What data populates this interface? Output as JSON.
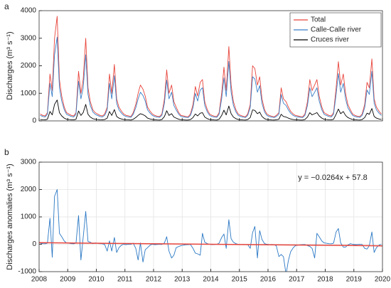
{
  "chart_data": [
    {
      "type": "line",
      "panel": "a",
      "ylabel": "Discharges (m³ s⁻¹)",
      "xlim": [
        2008,
        2020
      ],
      "xticks": [
        2008,
        2009,
        2010,
        2011,
        2012,
        2013,
        2014,
        2015,
        2016,
        2017,
        2018,
        2019,
        2020
      ],
      "ylim": [
        0,
        4000
      ],
      "yticks": [
        0,
        1000,
        2000,
        3000,
        4000
      ],
      "grid": false,
      "legend": "upper right",
      "x": [
        2008.04,
        2008.13,
        2008.21,
        2008.29,
        2008.38,
        2008.46,
        2008.54,
        2008.63,
        2008.71,
        2008.79,
        2008.88,
        2008.96,
        2009.04,
        2009.13,
        2009.21,
        2009.29,
        2009.38,
        2009.46,
        2009.54,
        2009.63,
        2009.71,
        2009.79,
        2009.88,
        2009.96,
        2010.04,
        2010.13,
        2010.21,
        2010.29,
        2010.38,
        2010.46,
        2010.54,
        2010.63,
        2010.71,
        2010.79,
        2010.88,
        2010.96,
        2011.04,
        2011.13,
        2011.21,
        2011.29,
        2011.38,
        2011.46,
        2011.54,
        2011.63,
        2011.71,
        2011.79,
        2011.88,
        2011.96,
        2012.04,
        2012.13,
        2012.21,
        2012.29,
        2012.38,
        2012.46,
        2012.54,
        2012.63,
        2012.71,
        2012.79,
        2012.88,
        2012.96,
        2013.04,
        2013.13,
        2013.21,
        2013.29,
        2013.38,
        2013.46,
        2013.54,
        2013.63,
        2013.71,
        2013.79,
        2013.88,
        2013.96,
        2014.04,
        2014.13,
        2014.21,
        2014.29,
        2014.38,
        2014.46,
        2014.54,
        2014.63,
        2014.71,
        2014.79,
        2014.88,
        2014.96,
        2015.04,
        2015.13,
        2015.21,
        2015.29,
        2015.38,
        2015.46,
        2015.54,
        2015.63,
        2015.71,
        2015.79,
        2015.88,
        2015.96,
        2016.04,
        2016.13,
        2016.21,
        2016.29,
        2016.38,
        2016.46,
        2016.54,
        2016.63,
        2016.71,
        2016.79,
        2016.88,
        2016.96,
        2017.04,
        2017.13,
        2017.21,
        2017.29,
        2017.38,
        2017.46,
        2017.54,
        2017.63,
        2017.71,
        2017.79,
        2017.88,
        2017.96,
        2018.04,
        2018.13,
        2018.21,
        2018.29,
        2018.38,
        2018.46,
        2018.54,
        2018.63,
        2018.71,
        2018.79,
        2018.88,
        2018.96,
        2019.04,
        2019.13,
        2019.21,
        2019.29,
        2019.38,
        2019.46,
        2019.54,
        2019.63,
        2019.71,
        2019.79,
        2019.88,
        2019.96
      ],
      "series": [
        {
          "name": "Total",
          "color": "#e8453c",
          "values": [
            250,
            200,
            180,
            300,
            1700,
            1100,
            3000,
            3800,
            1500,
            900,
            500,
            300,
            250,
            200,
            180,
            300,
            1800,
            1000,
            1500,
            3000,
            1200,
            700,
            400,
            300,
            250,
            200,
            180,
            250,
            500,
            1700,
            1000,
            2050,
            800,
            500,
            350,
            250,
            200,
            180,
            160,
            300,
            600,
            1000,
            1300,
            1150,
            900,
            500,
            350,
            250,
            200,
            170,
            160,
            250,
            800,
            1850,
            1000,
            1300,
            700,
            500,
            300,
            200,
            180,
            160,
            150,
            250,
            600,
            1250,
            900,
            1400,
            1500,
            700,
            400,
            250,
            200,
            170,
            160,
            300,
            1000,
            1950,
            1100,
            2700,
            1300,
            700,
            400,
            250,
            200,
            170,
            150,
            250,
            600,
            2000,
            1900,
            1300,
            1600,
            800,
            400,
            250,
            200,
            170,
            150,
            200,
            300,
            1200,
            800,
            700,
            500,
            350,
            250,
            200,
            180,
            160,
            150,
            250,
            700,
            1500,
            1100,
            1300,
            1500,
            900,
            500,
            300,
            250,
            200,
            180,
            300,
            1200,
            2150,
            1300,
            1700,
            1000,
            600,
            400,
            250,
            200,
            170,
            160,
            250,
            600,
            1400,
            1200,
            2250,
            800,
            500,
            350,
            250
          ]
        },
        {
          "name": "Calle-Calle river",
          "color": "#3a7fc8",
          "values": [
            200,
            160,
            144,
            240,
            1360,
            880,
            2400,
            3040,
            1200,
            720,
            400,
            240,
            200,
            160,
            144,
            240,
            1440,
            800,
            1200,
            2400,
            960,
            560,
            320,
            240,
            200,
            160,
            144,
            200,
            400,
            1360,
            800,
            1640,
            640,
            400,
            280,
            200,
            160,
            144,
            128,
            240,
            480,
            800,
            1040,
            920,
            720,
            400,
            280,
            200,
            160,
            136,
            128,
            200,
            640,
            1480,
            800,
            1040,
            560,
            400,
            240,
            160,
            144,
            128,
            120,
            200,
            480,
            1000,
            720,
            1120,
            1200,
            560,
            320,
            200,
            160,
            136,
            128,
            240,
            800,
            1560,
            880,
            2160,
            1040,
            560,
            320,
            200,
            160,
            136,
            120,
            200,
            480,
            1600,
            1520,
            1040,
            1280,
            640,
            320,
            200,
            160,
            136,
            120,
            160,
            240,
            960,
            640,
            560,
            400,
            280,
            200,
            160,
            144,
            128,
            120,
            200,
            560,
            1200,
            880,
            1040,
            1200,
            720,
            400,
            240,
            200,
            160,
            144,
            240,
            960,
            1720,
            1040,
            1360,
            800,
            480,
            320,
            200,
            160,
            136,
            128,
            200,
            480,
            1120,
            960,
            1800,
            640,
            400,
            280,
            200
          ]
        },
        {
          "name": "Cruces river",
          "color": "#000000",
          "values": [
            50,
            40,
            36,
            60,
            340,
            220,
            600,
            760,
            300,
            180,
            100,
            60,
            50,
            40,
            36,
            60,
            360,
            200,
            300,
            600,
            240,
            140,
            80,
            60,
            50,
            40,
            36,
            50,
            100,
            340,
            200,
            410,
            160,
            100,
            70,
            50,
            40,
            36,
            32,
            60,
            120,
            200,
            260,
            230,
            180,
            100,
            70,
            50,
            40,
            34,
            32,
            50,
            160,
            370,
            200,
            260,
            140,
            100,
            60,
            40,
            36,
            32,
            30,
            50,
            120,
            250,
            180,
            280,
            300,
            140,
            80,
            50,
            40,
            34,
            32,
            60,
            200,
            390,
            220,
            540,
            260,
            140,
            80,
            50,
            40,
            34,
            30,
            50,
            120,
            400,
            380,
            260,
            320,
            160,
            80,
            50,
            40,
            34,
            30,
            40,
            60,
            240,
            160,
            140,
            100,
            70,
            50,
            40,
            36,
            32,
            30,
            50,
            140,
            300,
            220,
            260,
            300,
            180,
            100,
            60,
            50,
            40,
            36,
            60,
            240,
            430,
            260,
            340,
            200,
            120,
            80,
            50,
            40,
            34,
            32,
            50,
            120,
            280,
            240,
            450,
            160,
            100,
            70,
            50
          ]
        }
      ]
    },
    {
      "type": "line",
      "panel": "b",
      "ylabel": "Discharges anomalies (m³ s⁻¹)",
      "annotation": "y = −0.0264x + 57.8",
      "xlim": [
        2008,
        2020
      ],
      "xticks": [
        2008,
        2009,
        2010,
        2011,
        2012,
        2013,
        2014,
        2015,
        2016,
        2017,
        2018,
        2019,
        2020
      ],
      "ylim": [
        -1000,
        3000
      ],
      "yticks": [
        -1000,
        0,
        1000,
        2000,
        3000
      ],
      "grid": true,
      "x": [
        2008.04,
        2008.13,
        2008.21,
        2008.29,
        2008.38,
        2008.46,
        2008.54,
        2008.63,
        2008.71,
        2008.79,
        2008.88,
        2008.96,
        2009.04,
        2009.13,
        2009.21,
        2009.29,
        2009.38,
        2009.46,
        2009.54,
        2009.63,
        2009.71,
        2009.79,
        2009.88,
        2009.96,
        2010.04,
        2010.13,
        2010.21,
        2010.29,
        2010.38,
        2010.46,
        2010.54,
        2010.63,
        2010.71,
        2010.79,
        2010.88,
        2010.96,
        2011.04,
        2011.13,
        2011.21,
        2011.29,
        2011.38,
        2011.46,
        2011.54,
        2011.63,
        2011.71,
        2011.79,
        2011.88,
        2011.96,
        2012.04,
        2012.13,
        2012.21,
        2012.29,
        2012.38,
        2012.46,
        2012.54,
        2012.63,
        2012.71,
        2012.79,
        2012.88,
        2012.96,
        2013.04,
        2013.13,
        2013.21,
        2013.29,
        2013.38,
        2013.46,
        2013.54,
        2013.63,
        2013.71,
        2013.79,
        2013.88,
        2013.96,
        2014.04,
        2014.13,
        2014.21,
        2014.29,
        2014.38,
        2014.46,
        2014.54,
        2014.63,
        2014.71,
        2014.79,
        2014.88,
        2014.96,
        2015.04,
        2015.13,
        2015.21,
        2015.29,
        2015.38,
        2015.46,
        2015.54,
        2015.63,
        2015.71,
        2015.79,
        2015.88,
        2015.96,
        2016.04,
        2016.13,
        2016.21,
        2016.29,
        2016.38,
        2016.46,
        2016.54,
        2016.63,
        2016.71,
        2016.79,
        2016.88,
        2016.96,
        2017.04,
        2017.13,
        2017.21,
        2017.29,
        2017.38,
        2017.46,
        2017.54,
        2017.63,
        2017.71,
        2017.79,
        2017.88,
        2017.96,
        2018.04,
        2018.13,
        2018.21,
        2018.29,
        2018.38,
        2018.46,
        2018.54,
        2018.63,
        2018.71,
        2018.79,
        2018.88,
        2018.96,
        2019.04,
        2019.13,
        2019.21,
        2019.29,
        2019.38,
        2019.46,
        2019.54,
        2019.63,
        2019.71,
        2019.79,
        2019.88,
        2019.96
      ],
      "series": [
        {
          "color": "#2a78c4",
          "values": [
            37,
            22,
            17,
            42,
            950,
            -475,
            1750,
            2000,
            400,
            275,
            120,
            50,
            37,
            22,
            17,
            42,
            1050,
            -575,
            250,
            1200,
            100,
            75,
            20,
            50,
            37,
            22,
            17,
            -8,
            -250,
            125,
            -250,
            250,
            -300,
            -125,
            -30,
            0,
            -13,
            2,
            -3,
            42,
            -150,
            -575,
            50,
            -650,
            -200,
            -125,
            -30,
            0,
            -13,
            -8,
            -3,
            -8,
            50,
            275,
            -250,
            -500,
            -400,
            -125,
            -80,
            -50,
            -33,
            -18,
            -13,
            -8,
            -150,
            -325,
            -350,
            -400,
            400,
            75,
            20,
            0,
            -13,
            -8,
            -3,
            42,
            250,
            375,
            -150,
            900,
            200,
            75,
            20,
            0,
            -13,
            -8,
            -13,
            -8,
            -150,
            425,
            650,
            -500,
            500,
            175,
            20,
            0,
            -13,
            -8,
            -13,
            -58,
            -450,
            -375,
            -450,
            -1100,
            -600,
            -275,
            -130,
            -50,
            -33,
            -18,
            -13,
            -8,
            -50,
            -75,
            -150,
            -500,
            400,
            275,
            120,
            50,
            37,
            22,
            17,
            42,
            450,
            575,
            50,
            -100,
            -100,
            -25,
            20,
            0,
            -13,
            -8,
            -3,
            -8,
            -150,
            -175,
            -50,
            450,
            -300,
            -125,
            -30,
            0
          ]
        }
      ],
      "trend": {
        "color": "#e8453c",
        "x": [
          2008,
          2020
        ],
        "values": [
          57.8,
          -57.9
        ]
      }
    }
  ]
}
